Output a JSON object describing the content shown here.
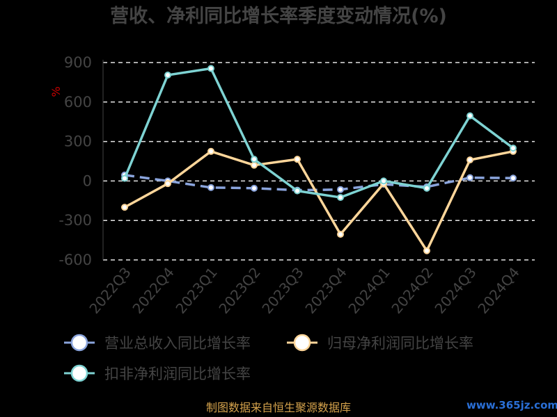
{
  "chart_data": {
    "type": "line",
    "title": "营收、净利同比增长率季度变动情况(%)",
    "ylabel": "%",
    "xlabel": "",
    "ylim": [
      -600,
      900
    ],
    "yticks": [
      900,
      600,
      300,
      0,
      -300,
      -600
    ],
    "grid": true,
    "legend_position": "bottom",
    "categories": [
      "2022Q3",
      "2022Q4",
      "2023Q1",
      "2023Q2",
      "2023Q3",
      "2023Q4",
      "2024Q1",
      "2024Q2",
      "2024Q3",
      "2024Q4"
    ],
    "series": [
      {
        "name": "营业总收入同比增长率",
        "color": "#8aa4dc",
        "dashed": true,
        "values": [
          45,
          0,
          -50,
          -55,
          -70,
          -65,
          -25,
          -45,
          25,
          22
        ]
      },
      {
        "name": "归母净利润同比增长率",
        "color": "#ffd69a",
        "dashed": false,
        "values": [
          -200,
          -20,
          225,
          120,
          165,
          -405,
          -20,
          -530,
          160,
          225
        ]
      },
      {
        "name": "扣非净利润同比增长率",
        "color": "#7ed3d3",
        "dashed": false,
        "values": [
          20,
          805,
          855,
          165,
          -75,
          -125,
          0,
          -55,
          495,
          250
        ]
      }
    ]
  },
  "footer": {
    "source": "制图数据来自恒生聚源数据库",
    "watermark": "www.365jz.com"
  }
}
